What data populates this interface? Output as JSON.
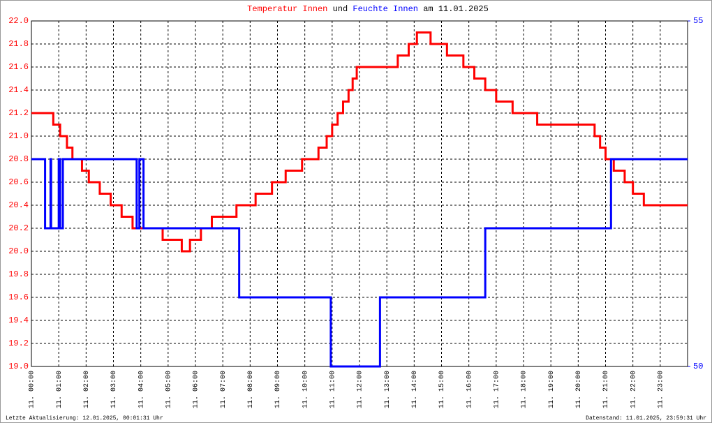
{
  "chart_data": {
    "type": "line",
    "title_joiner": "und",
    "title_date": "am 11.01.2025",
    "footer_left": "Letzte Aktualisierung: 12.01.2025, 00:01:31 Uhr",
    "footer_right": "Datenstand: 11.01.2025, 23:59:31 Uhr",
    "xlim": [
      0,
      24
    ],
    "xticks": [
      {
        "value": 0,
        "label": "11. 00:00"
      },
      {
        "value": 1,
        "label": "11. 01:00"
      },
      {
        "value": 2,
        "label": "11. 02:00"
      },
      {
        "value": 3,
        "label": "11. 03:00"
      },
      {
        "value": 4,
        "label": "11. 04:00"
      },
      {
        "value": 5,
        "label": "11. 05:00"
      },
      {
        "value": 6,
        "label": "11. 06:00"
      },
      {
        "value": 7,
        "label": "11. 07:00"
      },
      {
        "value": 8,
        "label": "11. 08:00"
      },
      {
        "value": 9,
        "label": "11. 09:00"
      },
      {
        "value": 10,
        "label": "11. 10:00"
      },
      {
        "value": 11,
        "label": "11. 11:00"
      },
      {
        "value": 12,
        "label": "11. 12:00"
      },
      {
        "value": 13,
        "label": "11. 13:00"
      },
      {
        "value": 14,
        "label": "11. 14:00"
      },
      {
        "value": 15,
        "label": "11. 15:00"
      },
      {
        "value": 16,
        "label": "11. 16:00"
      },
      {
        "value": 17,
        "label": "11. 17:00"
      },
      {
        "value": 18,
        "label": "11. 18:00"
      },
      {
        "value": 19,
        "label": "11. 19:00"
      },
      {
        "value": 20,
        "label": "11. 20:00"
      },
      {
        "value": 21,
        "label": "11. 21:00"
      },
      {
        "value": 22,
        "label": "11. 22:00"
      },
      {
        "value": 23,
        "label": "11. 23:00"
      }
    ],
    "ylim": [
      19.0,
      22.0
    ],
    "yticks": [
      {
        "value": 19,
        "label": "19.0"
      },
      19.2,
      19.4,
      19.6,
      19.8,
      {
        "value": 20,
        "label": "20.0"
      },
      20.2,
      20.4,
      20.6,
      20.8,
      {
        "value": 21,
        "label": "21.0"
      },
      21.2,
      21.4,
      21.6,
      21.8,
      {
        "value": 22,
        "label": "22.0"
      }
    ],
    "y2lim": [
      50,
      55
    ],
    "y2ticks": [
      50,
      55
    ],
    "grid": true,
    "series": [
      {
        "name": "Temperatur Innen",
        "color": "#ff0000",
        "x": [
          0,
          0.8,
          0.8,
          1.05,
          1.05,
          1.3,
          1.3,
          1.5,
          1.5,
          1.85,
          1.85,
          2.1,
          2.1,
          2.5,
          2.5,
          2.9,
          2.9,
          3.3,
          3.3,
          3.7,
          3.7,
          4.8,
          4.8,
          5.5,
          5.5,
          5.8,
          5.8,
          6.2,
          6.2,
          6.6,
          6.6,
          7.5,
          7.5,
          8.2,
          8.2,
          8.8,
          8.8,
          9.3,
          9.3,
          9.9,
          9.9,
          10.5,
          10.5,
          10.8,
          10.8,
          11.0,
          11.0,
          11.2,
          11.2,
          11.4,
          11.4,
          11.6,
          11.6,
          11.75,
          11.75,
          11.9,
          11.9,
          13.4,
          13.4,
          13.8,
          13.8,
          14.1,
          14.1,
          14.6,
          14.6,
          15.2,
          15.2,
          15.8,
          15.8,
          16.2,
          16.2,
          16.6,
          16.6,
          17.0,
          17.0,
          17.6,
          17.6,
          18.5,
          18.5,
          20.6,
          20.6,
          20.8,
          20.8,
          21.0,
          21.0,
          21.3,
          21.3,
          21.7,
          21.7,
          22.0,
          22.0,
          22.4,
          22.4,
          24
        ],
        "values": [
          21.2,
          21.2,
          21.1,
          21.1,
          21.0,
          21.0,
          20.9,
          20.9,
          20.8,
          20.8,
          20.7,
          20.7,
          20.6,
          20.6,
          20.5,
          20.5,
          20.4,
          20.4,
          20.3,
          20.3,
          20.2,
          20.2,
          20.1,
          20.1,
          20.0,
          20.0,
          20.1,
          20.1,
          20.2,
          20.2,
          20.3,
          20.3,
          20.4,
          20.4,
          20.5,
          20.5,
          20.6,
          20.6,
          20.7,
          20.7,
          20.8,
          20.8,
          20.9,
          20.9,
          21.0,
          21.0,
          21.1,
          21.1,
          21.2,
          21.2,
          21.3,
          21.3,
          21.4,
          21.4,
          21.5,
          21.5,
          21.6,
          21.6,
          21.7,
          21.7,
          21.8,
          21.8,
          21.9,
          21.9,
          21.8,
          21.8,
          21.7,
          21.7,
          21.6,
          21.6,
          21.5,
          21.5,
          21.4,
          21.4,
          21.3,
          21.3,
          21.2,
          21.2,
          21.1,
          21.1,
          21.0,
          21.0,
          20.9,
          20.9,
          20.8,
          20.8,
          20.7,
          20.7,
          20.6,
          20.6,
          20.5,
          20.5,
          20.4,
          20.4
        ]
      },
      {
        "name": "Feuchte Innen",
        "color": "#0000ff",
        "axis": "y2",
        "x": [
          0,
          0.5,
          0.5,
          0.7,
          0.7,
          0.72,
          0.72,
          1.0,
          1.0,
          1.05,
          1.05,
          1.15,
          1.15,
          3.85,
          3.85,
          3.95,
          3.95,
          4.1,
          4.1,
          7.6,
          7.6,
          10.95,
          10.95,
          12.75,
          12.75,
          16.6,
          16.6,
          21.2,
          21.2,
          24
        ],
        "values": [
          53,
          53,
          52,
          52,
          53,
          53,
          52,
          52,
          53,
          53,
          52,
          52,
          53,
          53,
          52,
          52,
          53,
          53,
          52,
          52,
          51,
          51,
          50,
          50,
          51,
          51,
          52,
          52,
          53,
          53
        ]
      }
    ]
  }
}
